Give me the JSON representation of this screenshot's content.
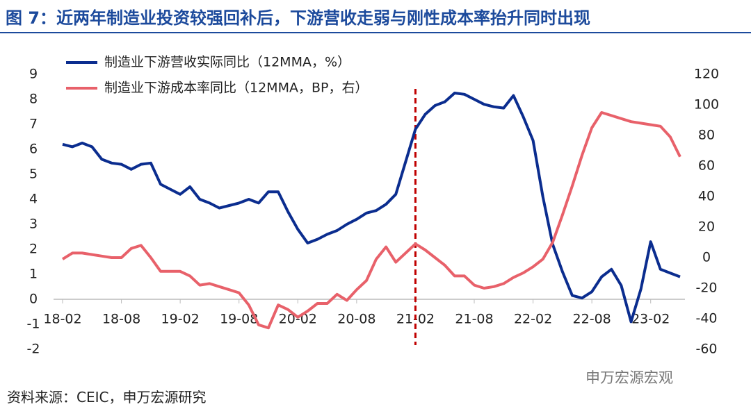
{
  "chart_data": {
    "type": "line",
    "title": "图 7：近两年制造业投资较强回补后，下游营收走弱与刚性成本率抬升同时出现",
    "source": "资料来源：CEIC，申万宏源研究",
    "watermark": "申万宏源宏观",
    "categories": [
      "18-02",
      null,
      null,
      null,
      null,
      null,
      "18-08",
      null,
      null,
      null,
      null,
      null,
      "19-02",
      null,
      null,
      null,
      null,
      null,
      "19-08",
      null,
      null,
      null,
      null,
      null,
      "20-02",
      null,
      null,
      null,
      null,
      null,
      "20-08",
      null,
      null,
      null,
      null,
      null,
      "21-02",
      null,
      null,
      null,
      null,
      null,
      "21-08",
      null,
      null,
      null,
      null,
      null,
      "22-02",
      null,
      null,
      null,
      null,
      null,
      "22-08",
      null,
      null,
      null,
      null,
      null,
      "23-02",
      null,
      null,
      null
    ],
    "series": [
      {
        "name": "制造业下游营收实际同比（12MMA，%）",
        "color": "#0b2d8f",
        "values": [
          6.2,
          6.1,
          6.25,
          6.1,
          5.6,
          5.45,
          5.4,
          5.2,
          5.4,
          5.45,
          4.6,
          4.4,
          4.2,
          4.5,
          4.0,
          3.85,
          3.65,
          3.75,
          3.85,
          4.0,
          3.85,
          4.3,
          4.3,
          3.5,
          2.8,
          2.25,
          2.4,
          2.6,
          2.75,
          3.0,
          3.2,
          3.45,
          3.55,
          3.8,
          4.2,
          5.5,
          6.8,
          7.4,
          7.75,
          7.9,
          8.25,
          8.2,
          8.0,
          7.8,
          7.7,
          7.65,
          8.15,
          7.3,
          6.35,
          4.1,
          2.2,
          1.1,
          0.15,
          0.05,
          0.3,
          0.9,
          1.2,
          0.55,
          -0.9,
          0.4,
          2.3,
          1.2,
          1.05,
          0.9
        ]
      },
      {
        "name": "制造业下游成本率同比（12MMA，BP，右）",
        "color": "#e8616a",
        "axis": "y2",
        "values": [
          -1,
          3,
          3,
          2,
          1,
          0,
          0,
          6,
          8,
          0,
          -9,
          -9,
          -9,
          -12,
          -18,
          -17,
          -19,
          -21,
          -23,
          -31,
          -44,
          -46,
          -31,
          -34,
          -39,
          -35,
          -30,
          -30,
          -24,
          -28,
          -21,
          -15,
          -1,
          7,
          -3,
          3,
          9,
          5,
          0,
          -5,
          -12,
          -12,
          -18,
          -20,
          -19,
          -17,
          -13,
          -10,
          -6,
          -1,
          10,
          28,
          47,
          67,
          85,
          95,
          93,
          91,
          89,
          88,
          87,
          86,
          79,
          66
        ]
      }
    ],
    "ylim": [
      -2,
      9
    ],
    "yticks": [
      -2,
      -1,
      0,
      1,
      2,
      3,
      4,
      5,
      6,
      7,
      8,
      9
    ],
    "y2lim": [
      -60,
      120
    ],
    "y2ticks": [
      -60,
      -40,
      -20,
      0,
      20,
      40,
      60,
      80,
      100,
      120
    ],
    "vertical_line": {
      "x": "21-02",
      "color": "#c00000",
      "style": "dashed"
    },
    "legend": "top-left",
    "grid": false
  }
}
